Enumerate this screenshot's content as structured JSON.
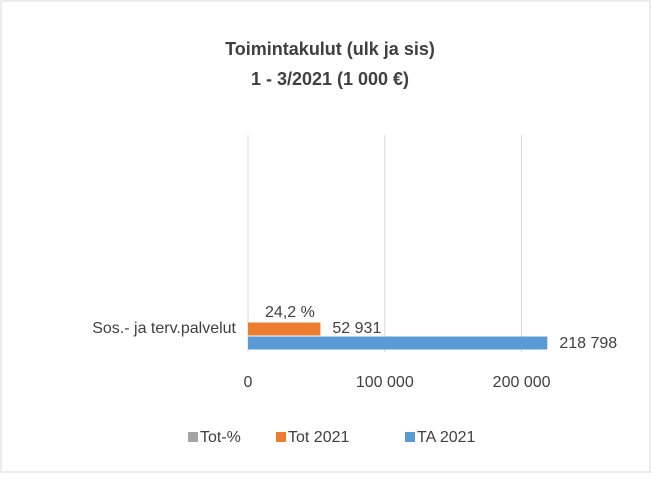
{
  "chart_data": {
    "type": "hbar",
    "title": "Toimintakulut (ulk ja sis)",
    "subtitle": "1 - 3/2021 (1 000 €)",
    "categories": [
      "Sos.- ja terv.palvelut"
    ],
    "series": [
      {
        "name": "Tot-%",
        "color": "#a5a5a5",
        "values": [
          24.2
        ],
        "value_labels": [
          "24,2 %"
        ]
      },
      {
        "name": "Tot 2021",
        "color": "#ed7d31",
        "values": [
          52931
        ],
        "value_labels": [
          "52 931"
        ]
      },
      {
        "name": "TA 2021",
        "color": "#5b9bd5",
        "values": [
          218798
        ],
        "value_labels": [
          "218 798"
        ]
      }
    ],
    "xlim": [
      0,
      250000
    ],
    "xticks": [
      0,
      {
        "value": 100000,
        "label": "100 000"
      },
      {
        "value": 200000,
        "label": "200 000"
      }
    ],
    "grid": true,
    "legend": "bottom"
  }
}
